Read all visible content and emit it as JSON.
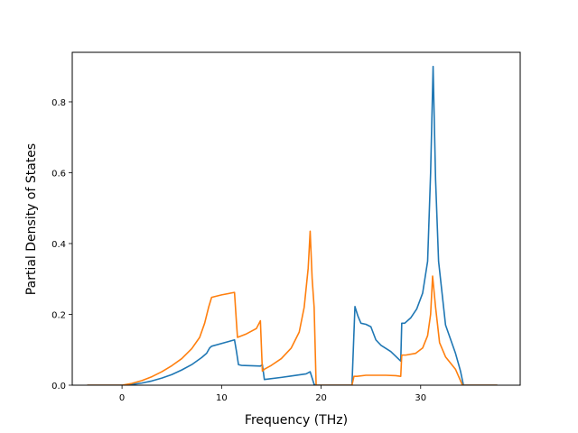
{
  "chart_data": {
    "type": "line",
    "xlabel": "Frequency (THz)",
    "ylabel": "Partial Density of States",
    "xlim": [
      -5,
      40
    ],
    "ylim": [
      0,
      0.94
    ],
    "xticks": [
      0,
      10,
      20,
      30
    ],
    "yticks": [
      0.0,
      0.2,
      0.4,
      0.6,
      0.8
    ],
    "xtick_labels": [
      "0",
      "10",
      "20",
      "30"
    ],
    "ytick_labels": [
      "0.0",
      "0.2",
      "0.4",
      "0.6",
      "0.8"
    ],
    "grid": false,
    "legend": false,
    "series": [
      {
        "color": "#1f77b4",
        "x": [
          -3.5,
          0,
          1,
          2,
          3,
          4,
          5,
          6,
          7,
          8,
          8.5,
          8.8,
          9.0,
          11.3,
          11.5,
          11.7,
          12,
          13,
          13.9,
          14.1,
          14.3,
          16,
          17,
          18.5,
          18.9,
          19.1,
          19.3,
          19.6,
          21,
          23.1,
          23.4,
          23.7,
          24,
          24.5,
          25.0,
          25.5,
          26,
          27,
          28.0,
          28.1,
          28.4,
          29.0,
          29.6,
          30.2,
          30.7,
          31.0,
          31.25,
          31.5,
          31.8,
          32.5,
          33.5,
          34.0,
          34.3,
          36,
          37.7
        ],
        "y": [
          0.0,
          0.0,
          0.002,
          0.006,
          0.012,
          0.02,
          0.03,
          0.043,
          0.058,
          0.078,
          0.09,
          0.105,
          0.11,
          0.128,
          0.095,
          0.058,
          0.056,
          0.055,
          0.054,
          0.058,
          0.016,
          0.022,
          0.026,
          0.032,
          0.038,
          0.02,
          0.002,
          0.0,
          0.0,
          0.0,
          0.222,
          0.195,
          0.175,
          0.172,
          0.165,
          0.128,
          0.113,
          0.095,
          0.068,
          0.175,
          0.175,
          0.19,
          0.215,
          0.26,
          0.35,
          0.6,
          0.9,
          0.58,
          0.35,
          0.17,
          0.09,
          0.04,
          0.0,
          0.0,
          0.0
        ]
      },
      {
        "color": "#ff7f0e",
        "x": [
          -3.5,
          0,
          1,
          2,
          3,
          4,
          5,
          6,
          7,
          7.8,
          8.3,
          8.7,
          9.0,
          10,
          11.3,
          11.5,
          11.6,
          12.5,
          13.5,
          13.9,
          14.1,
          14.3,
          15,
          16,
          17,
          17.8,
          18.3,
          18.7,
          18.9,
          19.1,
          19.3,
          19.5,
          21,
          23.1,
          23.3,
          23.6,
          24.5,
          25.5,
          26.5,
          27.5,
          28.0,
          28.1,
          28.5,
          29.5,
          30.2,
          30.7,
          31.0,
          31.2,
          31.5,
          31.9,
          32.5,
          33.5,
          34.2,
          36,
          37.7
        ],
        "y": [
          0.0,
          0.0,
          0.005,
          0.013,
          0.024,
          0.038,
          0.055,
          0.075,
          0.103,
          0.135,
          0.175,
          0.22,
          0.248,
          0.255,
          0.262,
          0.175,
          0.135,
          0.145,
          0.16,
          0.182,
          0.04,
          0.045,
          0.056,
          0.075,
          0.105,
          0.15,
          0.22,
          0.33,
          0.435,
          0.3,
          0.22,
          0.0,
          0.0,
          0.0,
          0.025,
          0.025,
          0.028,
          0.028,
          0.028,
          0.027,
          0.025,
          0.085,
          0.085,
          0.09,
          0.105,
          0.14,
          0.2,
          0.308,
          0.22,
          0.12,
          0.08,
          0.045,
          0.0,
          0.0,
          0.0
        ]
      }
    ]
  }
}
